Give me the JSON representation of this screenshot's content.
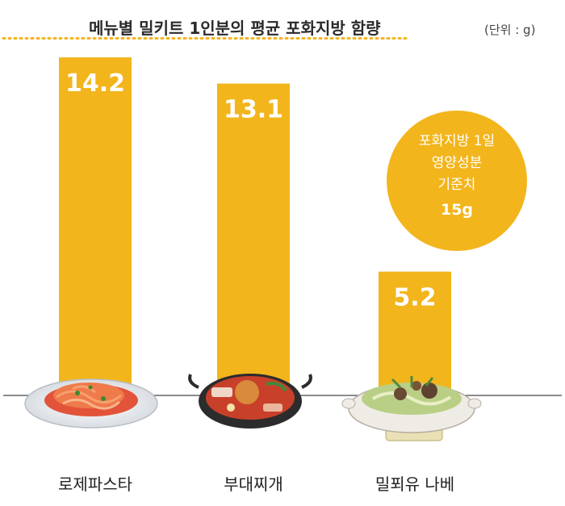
{
  "chart_data": {
    "type": "bar",
    "title": "메뉴별 밀키트 1인분의 평균 포화지방 함량",
    "unit": "(단위 : g)",
    "categories": [
      "로제파스타",
      "부대찌개",
      "밀푀유 나베"
    ],
    "values": [
      14.2,
      13.1,
      5.2
    ],
    "value_labels": [
      "14.2",
      "13.1",
      "5.2"
    ],
    "ylim": [
      0,
      16
    ],
    "reference": {
      "value": 15,
      "label_lines": [
        "포화지방 1일",
        "영양성분",
        "기준치"
      ],
      "value_label": "15g"
    },
    "colors": {
      "bar": "#f2b51c",
      "reference": "#f2b51c",
      "baseline": "#666666"
    }
  }
}
